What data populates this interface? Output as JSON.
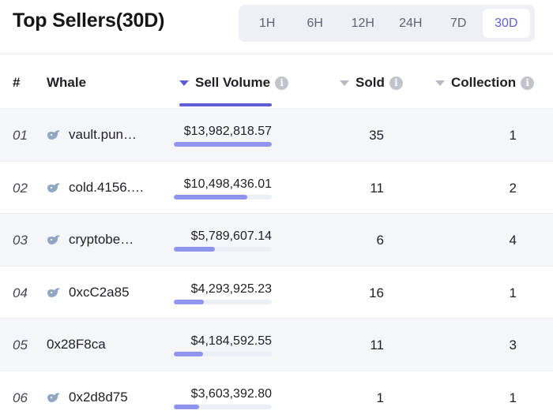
{
  "title": "Top Sellers(30D)",
  "ranges": [
    "1H",
    "6H",
    "12H",
    "24H",
    "7D",
    "30D"
  ],
  "active_range": "30D",
  "columns": {
    "rank": "#",
    "whale": "Whale",
    "sell_volume": "Sell Volume",
    "sold": "Sold",
    "collection": "Collection"
  },
  "colors": {
    "accent": "#5f5ed8",
    "bar": "#8f94ee"
  },
  "rows": [
    {
      "rank": "01",
      "whale": "vault.pun…",
      "has_icon": true,
      "volume": "$13,982,818.57",
      "volume_share": 1.0,
      "sold": "35",
      "collection": "1"
    },
    {
      "rank": "02",
      "whale": "cold.4156.…",
      "has_icon": true,
      "volume": "$10,498,436.01",
      "volume_share": 0.75,
      "sold": "11",
      "collection": "2"
    },
    {
      "rank": "03",
      "whale": "cryptobe…",
      "has_icon": true,
      "volume": "$5,789,607.14",
      "volume_share": 0.42,
      "sold": "6",
      "collection": "4"
    },
    {
      "rank": "04",
      "whale": "0xcC2a85",
      "has_icon": true,
      "volume": "$4,293,925.23",
      "volume_share": 0.31,
      "sold": "16",
      "collection": "1"
    },
    {
      "rank": "05",
      "whale": "0x28F8ca",
      "has_icon": false,
      "volume": "$4,184,592.55",
      "volume_share": 0.3,
      "sold": "11",
      "collection": "3"
    },
    {
      "rank": "06",
      "whale": "0x2d8d75",
      "has_icon": true,
      "volume": "$3,603,392.80",
      "volume_share": 0.26,
      "sold": "1",
      "collection": "1"
    }
  ]
}
